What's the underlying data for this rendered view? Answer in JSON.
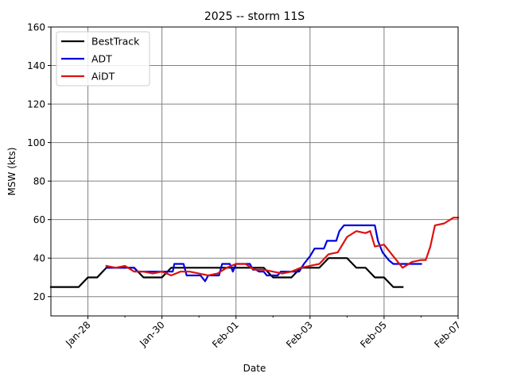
{
  "chart_data": {
    "type": "line",
    "title": "2025 -- storm 11S",
    "xlabel": "Date",
    "ylabel": "MSW (kts)",
    "xlim": [
      "2025-01-27T00:00",
      "2025-02-07T00:00"
    ],
    "ylim": [
      10,
      160
    ],
    "yticks": [
      20,
      40,
      60,
      80,
      100,
      120,
      140,
      160
    ],
    "xticks": [
      {
        "date": "2025-01-28T00:00",
        "label": "Jan-28"
      },
      {
        "date": "2025-01-30T00:00",
        "label": "Jan-30"
      },
      {
        "date": "2025-02-01T00:00",
        "label": "Feb-01"
      },
      {
        "date": "2025-02-03T00:00",
        "label": "Feb-03"
      },
      {
        "date": "2025-02-05T00:00",
        "label": "Feb-05"
      },
      {
        "date": "2025-02-07T00:00",
        "label": "Feb-07"
      }
    ],
    "minor_xticks": [
      "2025-01-29T00:00",
      "2025-01-31T00:00",
      "2025-02-02T00:00",
      "2025-02-04T00:00",
      "2025-02-06T00:00"
    ],
    "grid": true,
    "legend": "top-left",
    "series": [
      {
        "name": "BestTrack",
        "color": "#000000",
        "points": [
          [
            "2025-01-27T00:00",
            25
          ],
          [
            "2025-01-27T18:00",
            25
          ],
          [
            "2025-01-28T00:00",
            30
          ],
          [
            "2025-01-28T06:00",
            30
          ],
          [
            "2025-01-28T12:00",
            35
          ],
          [
            "2025-01-29T06:00",
            35
          ],
          [
            "2025-01-29T12:00",
            30
          ],
          [
            "2025-01-29T18:00",
            30
          ],
          [
            "2025-01-30T00:00",
            30
          ],
          [
            "2025-01-30T06:00",
            35
          ],
          [
            "2025-02-01T18:00",
            35
          ],
          [
            "2025-02-02T00:00",
            30
          ],
          [
            "2025-02-02T12:00",
            30
          ],
          [
            "2025-02-02T18:00",
            35
          ],
          [
            "2025-02-03T06:00",
            35
          ],
          [
            "2025-02-03T12:00",
            40
          ],
          [
            "2025-02-04T00:00",
            40
          ],
          [
            "2025-02-04T06:00",
            35
          ],
          [
            "2025-02-04T12:00",
            35
          ],
          [
            "2025-02-04T18:00",
            30
          ],
          [
            "2025-02-05T00:00",
            30
          ],
          [
            "2025-02-05T06:00",
            25
          ],
          [
            "2025-02-05T12:00",
            25
          ]
        ]
      },
      {
        "name": "ADT",
        "color": "#0000dd",
        "points": [
          [
            "2025-01-28T12:00",
            35
          ],
          [
            "2025-01-29T06:00",
            35
          ],
          [
            "2025-01-29T08:00",
            33
          ],
          [
            "2025-01-30T07:00",
            33
          ],
          [
            "2025-01-30T08:00",
            37
          ],
          [
            "2025-01-30T14:00",
            37
          ],
          [
            "2025-01-30T16:00",
            31
          ],
          [
            "2025-01-31T01:00",
            31
          ],
          [
            "2025-01-31T04:00",
            28
          ],
          [
            "2025-01-31T06:00",
            31
          ],
          [
            "2025-01-31T13:00",
            31
          ],
          [
            "2025-01-31T15:00",
            37
          ],
          [
            "2025-01-31T20:00",
            37
          ],
          [
            "2025-01-31T22:00",
            33
          ],
          [
            "2025-02-01T00:00",
            37
          ],
          [
            "2025-02-01T09:00",
            37
          ],
          [
            "2025-02-01T11:00",
            34
          ],
          [
            "2025-02-01T13:00",
            34
          ],
          [
            "2025-02-01T15:00",
            33
          ],
          [
            "2025-02-01T18:00",
            33
          ],
          [
            "2025-02-01T20:00",
            31
          ],
          [
            "2025-02-02T03:00",
            31
          ],
          [
            "2025-02-02T05:00",
            33
          ],
          [
            "2025-02-02T17:00",
            33
          ],
          [
            "2025-02-02T20:00",
            37
          ],
          [
            "2025-02-03T00:00",
            41
          ],
          [
            "2025-02-03T03:00",
            45
          ],
          [
            "2025-02-03T09:00",
            45
          ],
          [
            "2025-02-03T11:00",
            49
          ],
          [
            "2025-02-03T17:00",
            49
          ],
          [
            "2025-02-03T19:00",
            54
          ],
          [
            "2025-02-03T22:00",
            57
          ],
          [
            "2025-02-04T18:00",
            57
          ],
          [
            "2025-02-04T20:00",
            49
          ],
          [
            "2025-02-04T23:00",
            43
          ],
          [
            "2025-02-05T03:00",
            39
          ],
          [
            "2025-02-05T06:00",
            37
          ],
          [
            "2025-02-05T12:00",
            37
          ],
          [
            "2025-02-06T00:00",
            37
          ]
        ]
      },
      {
        "name": "AiDT",
        "color": "#dd1111",
        "points": [
          [
            "2025-01-28T12:00",
            36
          ],
          [
            "2025-01-28T18:00",
            35
          ],
          [
            "2025-01-29T00:00",
            36
          ],
          [
            "2025-01-29T06:00",
            33
          ],
          [
            "2025-01-29T12:00",
            33
          ],
          [
            "2025-01-29T18:00",
            32
          ],
          [
            "2025-01-30T00:00",
            33
          ],
          [
            "2025-01-30T06:00",
            31
          ],
          [
            "2025-01-30T12:00",
            33
          ],
          [
            "2025-01-30T18:00",
            33
          ],
          [
            "2025-01-31T00:00",
            32
          ],
          [
            "2025-01-31T06:00",
            31
          ],
          [
            "2025-01-31T12:00",
            32
          ],
          [
            "2025-01-31T18:00",
            35
          ],
          [
            "2025-02-01T00:00",
            37
          ],
          [
            "2025-02-01T06:00",
            37
          ],
          [
            "2025-02-01T12:00",
            34
          ],
          [
            "2025-02-01T18:00",
            34
          ],
          [
            "2025-02-02T00:00",
            33
          ],
          [
            "2025-02-02T06:00",
            32
          ],
          [
            "2025-02-02T12:00",
            33
          ],
          [
            "2025-02-02T18:00",
            35
          ],
          [
            "2025-02-03T00:00",
            36
          ],
          [
            "2025-02-03T06:00",
            37
          ],
          [
            "2025-02-03T12:00",
            42
          ],
          [
            "2025-02-03T18:00",
            43
          ],
          [
            "2025-02-04T00:00",
            51
          ],
          [
            "2025-02-04T06:00",
            54
          ],
          [
            "2025-02-04T12:00",
            53
          ],
          [
            "2025-02-04T15:00",
            54
          ],
          [
            "2025-02-04T18:00",
            46
          ],
          [
            "2025-02-05T00:00",
            47
          ],
          [
            "2025-02-05T06:00",
            41
          ],
          [
            "2025-02-05T12:00",
            35
          ],
          [
            "2025-02-05T18:00",
            38
          ],
          [
            "2025-02-06T00:00",
            39
          ],
          [
            "2025-02-06T03:00",
            39
          ],
          [
            "2025-02-06T06:00",
            46
          ],
          [
            "2025-02-06T09:00",
            57
          ],
          [
            "2025-02-06T15:00",
            58
          ],
          [
            "2025-02-06T21:00",
            61
          ],
          [
            "2025-02-07T00:00",
            61
          ]
        ]
      }
    ]
  }
}
